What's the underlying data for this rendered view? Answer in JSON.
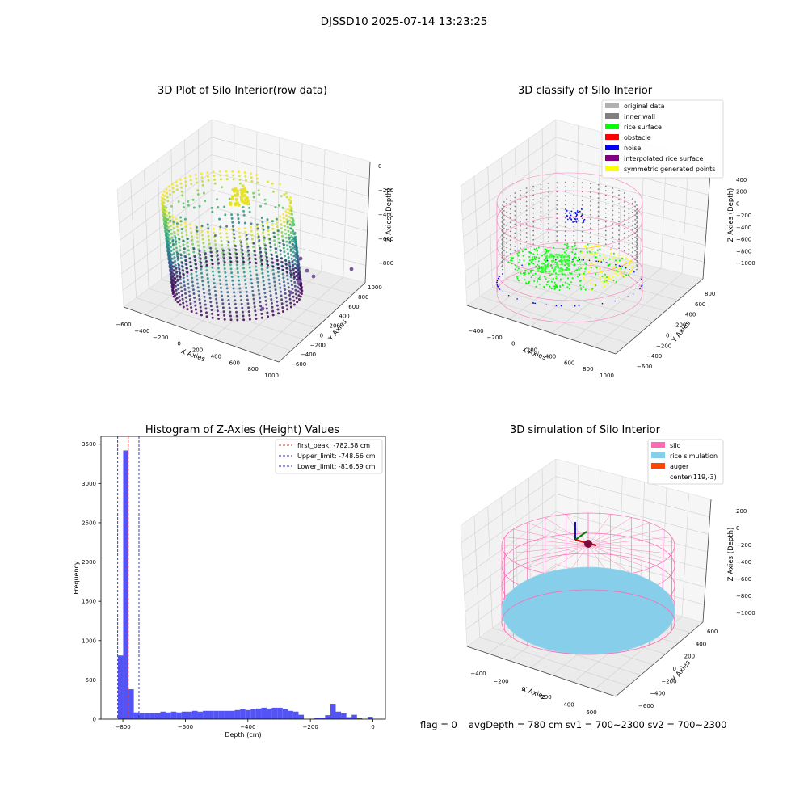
{
  "suptitle": "DJSSD10 2025-07-14 13:23:25",
  "footer": {
    "flag": "flag = 0",
    "stats": "avgDepth = 780 cm  sv1 = 700~2300  sv2 = 700~2300"
  },
  "colors": {
    "histogram_bar": "#4b4bf5",
    "first_peak_line": "#e03030",
    "limit_lines": "#2828c8",
    "silo": "#ff69b4",
    "rice_simulation": "#87ceeb",
    "auger": "#ff4500",
    "rice_surface": "#00ff00",
    "noise": "#0000ff",
    "inner_wall": "#808080",
    "original_data": "#b0b0b0",
    "obstacle": "#ff0000",
    "interpolated_rice_surface": "#800080",
    "symmetric_generated_points": "#ffff00"
  },
  "chart_data": [
    {
      "type": "scatter",
      "title": "3D Plot of Silo Interior(row data)",
      "xlabel": "X Axies",
      "ylabel": "Y Axies",
      "zlabel": "Z Axies (Depth)",
      "x_ticks": [
        "−600",
        "−400",
        "−200",
        "0",
        "200",
        "400",
        "600",
        "800",
        "1000"
      ],
      "y_ticks": [
        "−600",
        "−400",
        "−200",
        "0",
        "200",
        "400",
        "600",
        "800",
        "1000"
      ],
      "z_ticks": [
        "0",
        "−200",
        "−400",
        "−600",
        "−800"
      ],
      "colormap": "viridis",
      "grid": true
    },
    {
      "type": "scatter",
      "title": "3D classify of Silo Interior",
      "xlabel": "X Axies",
      "ylabel": "Y Axies",
      "zlabel": "Z Axies (Depth)",
      "x_ticks": [
        "−400",
        "−200",
        "0",
        "200",
        "400",
        "600",
        "800",
        "1000"
      ],
      "y_ticks": [
        "−600",
        "−400",
        "−200",
        "0",
        "200",
        "400",
        "600",
        "800"
      ],
      "z_ticks": [
        "400",
        "200",
        "0",
        "−200",
        "−400",
        "−600",
        "−800",
        "−1000"
      ],
      "legend": [
        "original data",
        "inner wall",
        "rice surface",
        "obstacle",
        "noise",
        "interpolated rice surface",
        "symmetric generated points"
      ],
      "legend_position": "top-right",
      "grid": true
    },
    {
      "type": "bar",
      "title": "Histogram of Z-Axies (Height) Values",
      "xlabel": "Depth (cm)",
      "ylabel": "Frequency",
      "xlim": [
        -870,
        40
      ],
      "ylim": [
        0,
        3600
      ],
      "x_ticks": [
        -800,
        -600,
        -400,
        -200,
        0
      ],
      "y_ticks": [
        0,
        500,
        1000,
        1500,
        2000,
        2500,
        3000,
        3500
      ],
      "bin_width": 17,
      "bins": [
        [
          -816,
          -799,
          810
        ],
        [
          -799,
          -782,
          3420
        ],
        [
          -782,
          -765,
          380
        ],
        [
          -765,
          -748,
          85
        ],
        [
          -748,
          -731,
          75
        ],
        [
          -731,
          -714,
          75
        ],
        [
          -714,
          -697,
          75
        ],
        [
          -697,
          -680,
          75
        ],
        [
          -680,
          -663,
          95
        ],
        [
          -663,
          -646,
          85
        ],
        [
          -646,
          -629,
          95
        ],
        [
          -629,
          -612,
          85
        ],
        [
          -612,
          -595,
          95
        ],
        [
          -595,
          -578,
          95
        ],
        [
          -578,
          -561,
          105
        ],
        [
          -561,
          -544,
          95
        ],
        [
          -544,
          -527,
          105
        ],
        [
          -527,
          -510,
          105
        ],
        [
          -510,
          -493,
          105
        ],
        [
          -493,
          -476,
          105
        ],
        [
          -476,
          -459,
          105
        ],
        [
          -459,
          -442,
          105
        ],
        [
          -442,
          -425,
          115
        ],
        [
          -425,
          -408,
          125
        ],
        [
          -408,
          -391,
          115
        ],
        [
          -391,
          -374,
          125
        ],
        [
          -374,
          -357,
          135
        ],
        [
          -357,
          -340,
          145
        ],
        [
          -340,
          -323,
          135
        ],
        [
          -323,
          -306,
          145
        ],
        [
          -306,
          -289,
          145
        ],
        [
          -289,
          -272,
          125
        ],
        [
          -272,
          -255,
          105
        ],
        [
          -255,
          -238,
          95
        ],
        [
          -238,
          -221,
          55
        ],
        [
          -204,
          -187,
          5
        ],
        [
          -187,
          -170,
          20
        ],
        [
          -170,
          -153,
          20
        ],
        [
          -153,
          -136,
          50
        ],
        [
          -136,
          -119,
          195
        ],
        [
          -119,
          -102,
          95
        ],
        [
          -102,
          -85,
          75
        ],
        [
          -85,
          -68,
          25
        ],
        [
          -68,
          -51,
          55
        ],
        [
          -51,
          -34,
          10
        ],
        [
          -17,
          0,
          30
        ]
      ],
      "vlines": [
        {
          "name": "first_peak: -782.58 cm",
          "x": -782.58,
          "color": "#e03030"
        },
        {
          "name": "Upper_limit: -748.56 cm",
          "x": -748.56,
          "color": "#2828c8"
        },
        {
          "name": "Lower_limit: -816.59 cm",
          "x": -816.59,
          "color": "#2828c8"
        }
      ],
      "legend_position": "top-right",
      "grid": false
    },
    {
      "type": "scatter",
      "title": "3D simulation of Silo Interior",
      "xlabel": "X Axies",
      "ylabel": "Y Axies",
      "zlabel": "Z Axies (Depth)",
      "x_ticks": [
        "−400",
        "−200",
        "0",
        "200",
        "400",
        "600"
      ],
      "y_ticks": [
        "−600",
        "−400",
        "−200",
        "0",
        "200",
        "400",
        "600"
      ],
      "z_ticks": [
        "200",
        "0",
        "−200",
        "−400",
        "−600",
        "−800",
        "−1000"
      ],
      "legend": [
        "silo",
        "rice simulation",
        "auger",
        "center(119,-3)"
      ],
      "legend_position": "top-right",
      "grid": true
    }
  ]
}
